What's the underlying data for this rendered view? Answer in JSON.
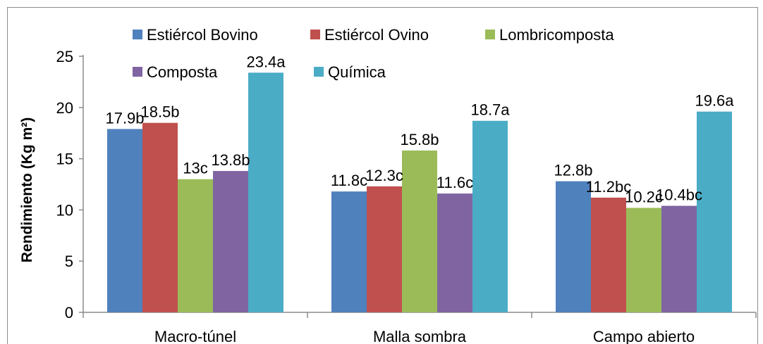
{
  "chart_data": {
    "type": "bar",
    "categories": [
      "Macro-túnel",
      "Malla sombra",
      "Campo abierto"
    ],
    "series": [
      {
        "name": "Estiércol Bovino",
        "color": "#4f81bd",
        "values": [
          17.9,
          11.8,
          12.8
        ],
        "labels": [
          "17.9b",
          "11.8c",
          "12.8b"
        ]
      },
      {
        "name": "Estiércol Ovino",
        "color": "#c0504d",
        "values": [
          18.5,
          12.3,
          11.2
        ],
        "labels": [
          "18.5b",
          "12.3c",
          "11.2bc"
        ]
      },
      {
        "name": "Lombricomposta",
        "color": "#9bbb59",
        "values": [
          13.0,
          15.8,
          10.2
        ],
        "labels": [
          "13c",
          "15.8b",
          "10.2c"
        ]
      },
      {
        "name": "Composta",
        "color": "#8064a2",
        "values": [
          13.8,
          11.6,
          10.4
        ],
        "labels": [
          "13.8b",
          "11.6c",
          "10.4bc"
        ]
      },
      {
        "name": "Química",
        "color": "#4bacc6",
        "values": [
          23.4,
          18.7,
          19.6
        ],
        "labels": [
          "23.4a",
          "18.7a",
          "19.6a"
        ]
      }
    ],
    "ylabel": "Rendimiento (Kg m²)",
    "xlabel": "",
    "ylim": [
      0,
      25
    ],
    "yticks": [
      0,
      5,
      10,
      15,
      20,
      25
    ],
    "grid": false,
    "legend_position": "top"
  }
}
